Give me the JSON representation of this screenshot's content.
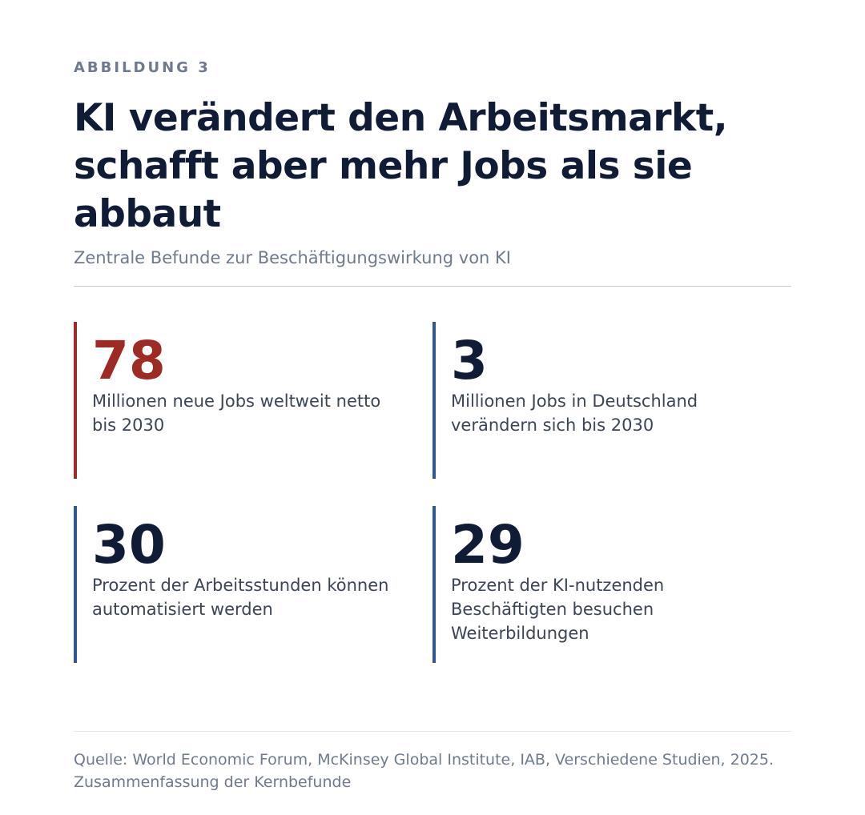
{
  "figure": {
    "eyebrow": "ABBILDUNG 3",
    "title": "KI verändert den Arbeitsmarkt, schafft aber mehr Jobs als sie abbaut",
    "subtitle": "Zentrale Befunde zur Beschäftigungswirkung von KI"
  },
  "stats": [
    {
      "value": "78",
      "label": "Millionen neue Jobs weltweit netto bis 2030",
      "color": "#9e2a25"
    },
    {
      "value": "3",
      "label": "Millionen Jobs in Deutschland verändern sich bis 2030",
      "color": "#2f5794"
    },
    {
      "value": "30",
      "label": "Prozent der Arbeitsstunden können automatisiert werden",
      "color": "#2f5794"
    },
    {
      "value": "29",
      "label": "Prozent der KI-nutzenden Beschäftigten besuchen Weiterbildungen",
      "color": "#2f5794"
    }
  ],
  "source": "Quelle: World Economic Forum, McKinsey Global Institute, IAB, Verschiedene Studien, 2025. Zusammenfassung der Kernbefunde",
  "colors": {
    "title": "#101c36",
    "muted": "#6f7b8c",
    "accent_red": "#9e2a25",
    "accent_blue": "#2f5794"
  }
}
